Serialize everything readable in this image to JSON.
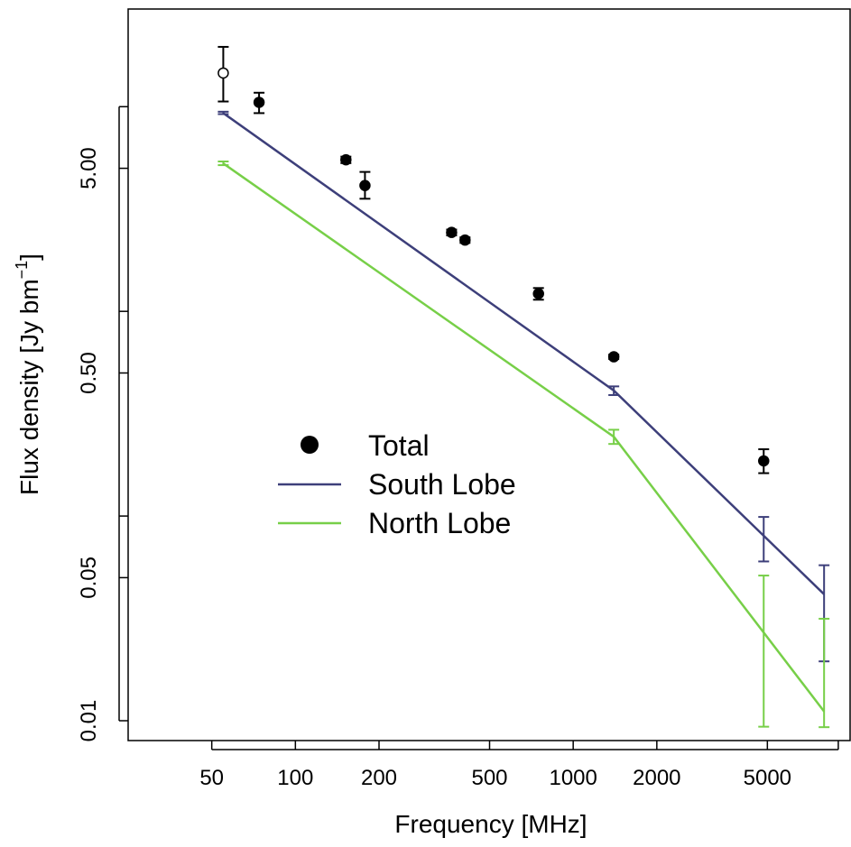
{
  "chart_data": {
    "type": "scatter",
    "xlabel": "Frequency [MHz]",
    "ylabel": "Flux density [Jy bm",
    "ylabel_sup": "−1",
    "ylabel_close": "]",
    "x_scale": "log",
    "y_scale": "log",
    "xlim": [
      25,
      10000
    ],
    "ylim": [
      0.008,
      30
    ],
    "x_ticks": [
      50,
      100,
      200,
      500,
      1000,
      2000,
      5000
    ],
    "x_tick_labels": [
      "50",
      "100",
      "200",
      "500",
      "1000",
      "2000",
      "5000"
    ],
    "y_ticks": [
      0.01,
      0.05,
      0.5,
      5
    ],
    "y_tick_labels": [
      "0.01",
      "0.05",
      "0.50",
      "5.00"
    ],
    "y_minor_ticks": [
      0.1,
      1,
      10
    ],
    "legend_position": "center-left",
    "total": {
      "name": "Total",
      "color": "#000000",
      "points": [
        {
          "x": 55,
          "y": 14.6,
          "lo": 10.6,
          "hi": 19.6,
          "open": true
        },
        {
          "x": 74,
          "y": 10.5,
          "lo": 9.3,
          "hi": 11.7,
          "open": false
        },
        {
          "x": 152,
          "y": 5.5,
          "lo": 5.3,
          "hi": 5.7,
          "open": false
        },
        {
          "x": 178,
          "y": 4.12,
          "lo": 3.55,
          "hi": 4.8,
          "open": false
        },
        {
          "x": 365,
          "y": 2.43,
          "lo": 2.35,
          "hi": 2.51,
          "open": false
        },
        {
          "x": 408,
          "y": 2.23,
          "lo": 2.16,
          "hi": 2.3,
          "open": false
        },
        {
          "x": 750,
          "y": 1.22,
          "lo": 1.14,
          "hi": 1.3,
          "open": false
        },
        {
          "x": 1400,
          "y": 0.6,
          "lo": 0.585,
          "hi": 0.615,
          "open": false
        },
        {
          "x": 4850,
          "y": 0.186,
          "lo": 0.162,
          "hi": 0.212,
          "open": false
        }
      ]
    },
    "series": [
      {
        "name": "South Lobe",
        "color": "#3d3f7a",
        "line": [
          [
            55,
            9.3
          ],
          [
            1400,
            0.41
          ],
          [
            8000,
            0.0415
          ]
        ],
        "error_bars": [
          {
            "x": 55,
            "lo": 9.2,
            "hi": 9.45
          },
          {
            "x": 1400,
            "lo": 0.39,
            "hi": 0.43
          },
          {
            "x": 4850,
            "lo": 0.06,
            "hi": 0.099
          },
          {
            "x": 8000,
            "lo": 0.0195,
            "hi": 0.0575
          }
        ]
      },
      {
        "name": "North Lobe",
        "color": "#77cf48",
        "line": [
          [
            55,
            5.28
          ],
          [
            1400,
            0.244
          ],
          [
            8000,
            0.0111
          ]
        ],
        "error_bars": [
          {
            "x": 55,
            "lo": 5.18,
            "hi": 5.4
          },
          {
            "x": 1400,
            "lo": 0.225,
            "hi": 0.264
          },
          {
            "x": 4850,
            "lo": 0.00935,
            "hi": 0.0512
          },
          {
            "x": 8000,
            "lo": 0.0093,
            "hi": 0.0315
          }
        ]
      }
    ]
  }
}
